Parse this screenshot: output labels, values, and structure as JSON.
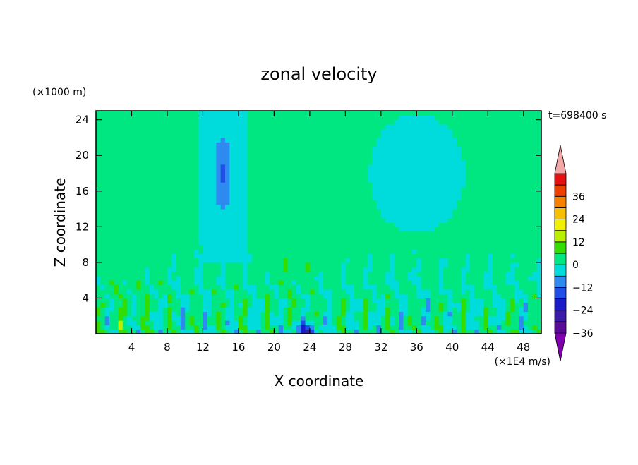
{
  "chart_data": {
    "type": "heatmap",
    "title": "zonal velocity",
    "time_label": "t=698400 s",
    "xlabel": "X coordinate",
    "ylabel": "Z coordinate",
    "y_scale_label": "(×1000 m)",
    "units_label": "(×1E4 m/s)",
    "xlim": [
      0,
      50
    ],
    "ylim": [
      0,
      25
    ],
    "x_ticks": [
      4,
      8,
      12,
      16,
      20,
      24,
      28,
      32,
      36,
      40,
      44,
      48
    ],
    "y_ticks": [
      4,
      8,
      12,
      16,
      20,
      24
    ],
    "colorbar": {
      "extend": "both",
      "tick_values": [
        36,
        24,
        12,
        0,
        -12,
        -24,
        -36
      ],
      "levels": [
        {
          "value": -36,
          "color": "#5a0a9a"
        },
        {
          "value": -30,
          "color": "#3a1aa8"
        },
        {
          "value": -24,
          "color": "#1a1ac8"
        },
        {
          "value": -18,
          "color": "#1f4fe6"
        },
        {
          "value": -12,
          "color": "#2f8af0"
        },
        {
          "value": -6,
          "color": "#00dcdc"
        },
        {
          "value": 0,
          "color": "#00e680"
        },
        {
          "value": 6,
          "color": "#33dd00"
        },
        {
          "value": 12,
          "color": "#b8f000"
        },
        {
          "value": 18,
          "color": "#f0f000"
        },
        {
          "value": 24,
          "color": "#f6c000"
        },
        {
          "value": 30,
          "color": "#f68000"
        },
        {
          "value": 36,
          "color": "#f04000"
        },
        {
          "value": 42,
          "color": "#e61010"
        }
      ],
      "under_color": "#8000b0",
      "over_color": "#f4a8a8"
    }
  }
}
